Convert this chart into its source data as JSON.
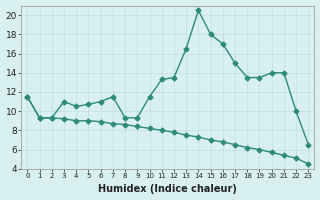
{
  "line1_x": [
    0,
    1,
    2,
    3,
    4,
    5,
    6,
    7,
    8,
    9,
    10,
    11,
    12,
    13,
    14,
    15,
    16,
    17,
    18,
    19,
    20,
    21,
    22,
    23
  ],
  "line1_y": [
    11.5,
    9.3,
    9.3,
    11.0,
    10.5,
    10.7,
    11.0,
    11.5,
    9.3,
    9.3,
    11.5,
    13.3,
    13.5,
    16.5,
    20.5,
    18.0,
    17.0,
    15.0,
    13.5,
    13.5,
    14.0,
    14.0,
    10.0,
    6.5
  ],
  "line2_x": [
    0,
    1,
    2,
    3,
    4,
    5,
    6,
    7,
    8,
    9,
    10,
    11,
    12,
    13,
    14,
    15,
    16,
    17,
    18,
    19,
    20,
    21,
    22,
    23
  ],
  "line2_y": [
    11.5,
    9.3,
    9.3,
    9.2,
    9.0,
    9.0,
    8.9,
    8.7,
    8.6,
    8.4,
    8.2,
    8.0,
    7.8,
    7.5,
    7.3,
    7.0,
    6.8,
    6.5,
    6.2,
    6.0,
    5.7,
    5.4,
    5.1,
    4.5
  ],
  "color": "#2e8b7a",
  "bg_color": "#d8f0ef",
  "grid_color": "#c0dede",
  "xlabel": "Humidex (Indice chaleur)",
  "ylim": [
    4,
    21
  ],
  "xlim": [
    -0.5,
    23.5
  ],
  "yticks": [
    4,
    6,
    8,
    10,
    12,
    14,
    16,
    18,
    20
  ],
  "xtick_labels": [
    "0",
    "1",
    "2",
    "3",
    "4",
    "5",
    "6",
    "7",
    "8",
    "9",
    "10",
    "11",
    "12",
    "13",
    "14",
    "15",
    "16",
    "17",
    "18",
    "19",
    "20",
    "21",
    "22",
    "23"
  ],
  "marker": "D",
  "marker_size": 2.5,
  "linewidth": 1.0
}
